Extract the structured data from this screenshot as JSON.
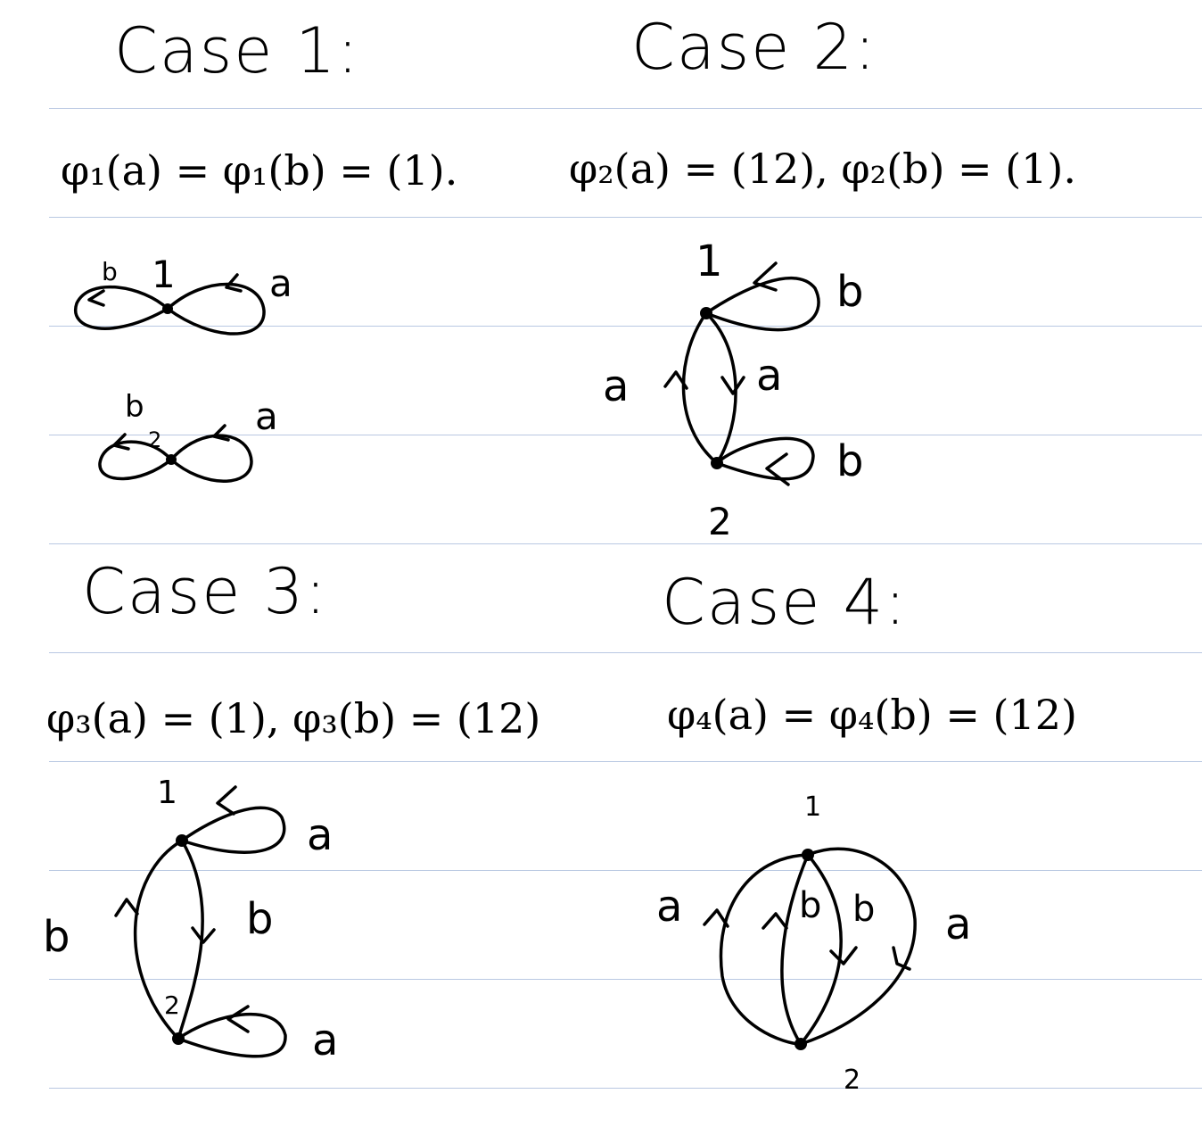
{
  "cases": [
    {
      "title": "Case 1:",
      "formula": "φ₁(a) = φ₁(b) = (1).",
      "graphs": [
        {
          "vertex": "1",
          "loops": [
            "b",
            "a"
          ]
        },
        {
          "vertex": "2",
          "loops": [
            "b",
            "a"
          ]
        }
      ]
    },
    {
      "title": "Case 2:",
      "formula": "φ₂(a) = (12), φ₂(b) = (1).",
      "vertices": [
        "1",
        "2"
      ],
      "edges": [
        "a",
        "a"
      ],
      "loops": [
        "b",
        "b"
      ]
    },
    {
      "title": "Case 3:",
      "formula": "φ₃(a) = (1), φ₃(b) = (12)",
      "vertices": [
        "1",
        "2"
      ],
      "edges": [
        "b",
        "b"
      ],
      "loops": [
        "a",
        "a"
      ]
    },
    {
      "title": "Case 4:",
      "formula": "φ₄(a) = φ₄(b) = (12)",
      "vertices": [
        "1",
        "2"
      ],
      "edges": [
        "a",
        "b",
        "b",
        "a"
      ]
    }
  ]
}
